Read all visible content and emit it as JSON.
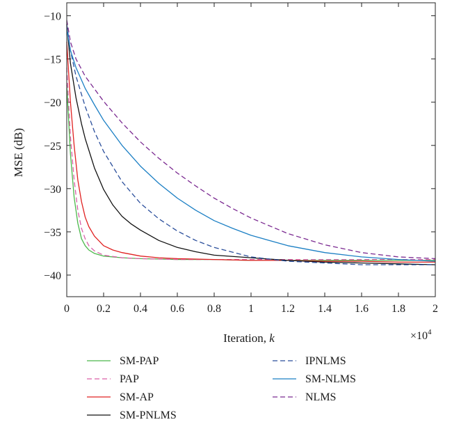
{
  "chart_data": {
    "type": "line",
    "title": "",
    "xlabel_text": "Iteration, ",
    "xlabel_var": "k",
    "ylabel": "MSE (dB)",
    "x_multiplier_text": "×10",
    "x_multiplier_exp": "4",
    "xlim": [
      0,
      2
    ],
    "ylim": [
      -42.5,
      -8.5
    ],
    "xticks": [
      0,
      0.2,
      0.4,
      0.6,
      0.8,
      1,
      1.2,
      1.4,
      1.6,
      1.8,
      2
    ],
    "xtick_labels": [
      "0",
      "0.2",
      "0.4",
      "0.6",
      "0.8",
      "1",
      "1.2",
      "1.4",
      "1.6",
      "1.8",
      "2"
    ],
    "yticks": [
      -10,
      -15,
      -20,
      -25,
      -30,
      -35,
      -40
    ],
    "ytick_labels": [
      "−10",
      "−15",
      "−20",
      "−25",
      "−30",
      "−35",
      "−40"
    ],
    "grid": false,
    "legend_position": "below",
    "series": [
      {
        "name": "SM-PAP",
        "color": "#4bb84b",
        "dash": "solid",
        "x": [
          0,
          0.02,
          0.04,
          0.06,
          0.08,
          0.1,
          0.12,
          0.15,
          0.2,
          0.3,
          0.4,
          0.6,
          0.8,
          1.0,
          1.2,
          1.4,
          1.6,
          1.8,
          2.0
        ],
        "y": [
          -18,
          -26,
          -31,
          -34,
          -35.8,
          -36.6,
          -37.1,
          -37.5,
          -37.8,
          -38.0,
          -38.1,
          -38.2,
          -38.2,
          -38.3,
          -38.3,
          -38.3,
          -38.3,
          -38.3,
          -38.3
        ]
      },
      {
        "name": "PAP",
        "color": "#d95fa8",
        "dash": "dashed",
        "x": [
          0,
          0.02,
          0.04,
          0.06,
          0.08,
          0.1,
          0.12,
          0.15,
          0.2,
          0.3,
          0.4,
          0.6,
          0.8,
          1.0,
          1.2,
          1.4,
          1.6,
          1.8,
          2.0
        ],
        "y": [
          -16,
          -24,
          -29,
          -32.5,
          -34.6,
          -35.8,
          -36.6,
          -37.2,
          -37.7,
          -38.0,
          -38.1,
          -38.2,
          -38.2,
          -38.2,
          -38.2,
          -38.2,
          -38.2,
          -38.2,
          -38.2
        ]
      },
      {
        "name": "SM-AP",
        "color": "#e02020",
        "dash": "solid",
        "x": [
          0,
          0.02,
          0.04,
          0.06,
          0.08,
          0.1,
          0.12,
          0.15,
          0.2,
          0.25,
          0.3,
          0.4,
          0.5,
          0.6,
          0.8,
          1.0,
          1.2,
          1.4,
          1.6,
          1.8,
          2.0
        ],
        "y": [
          -13,
          -20,
          -25,
          -29,
          -31.5,
          -33.3,
          -34.4,
          -35.5,
          -36.6,
          -37.1,
          -37.4,
          -37.8,
          -38.0,
          -38.1,
          -38.2,
          -38.3,
          -38.3,
          -38.4,
          -38.4,
          -38.5,
          -38.5
        ]
      },
      {
        "name": "SM-PNLMS",
        "color": "#111111",
        "dash": "solid",
        "x": [
          0,
          0.02,
          0.05,
          0.08,
          0.1,
          0.15,
          0.2,
          0.25,
          0.3,
          0.35,
          0.4,
          0.5,
          0.6,
          0.7,
          0.8,
          1.0,
          1.2,
          1.4,
          1.6,
          1.8,
          2.0
        ],
        "y": [
          -11,
          -15.5,
          -19.5,
          -22.5,
          -24.2,
          -27.6,
          -30.1,
          -31.9,
          -33.2,
          -34.1,
          -34.8,
          -36.0,
          -36.8,
          -37.3,
          -37.7,
          -38.0,
          -38.3,
          -38.5,
          -38.6,
          -38.7,
          -38.8
        ]
      },
      {
        "name": "IPNLMS",
        "color": "#2a4e9b",
        "dash": "dashed",
        "x": [
          0,
          0.02,
          0.05,
          0.1,
          0.15,
          0.2,
          0.3,
          0.4,
          0.5,
          0.6,
          0.7,
          0.8,
          1.0,
          1.2,
          1.4,
          1.6,
          1.8,
          2.0
        ],
        "y": [
          -11,
          -14,
          -17,
          -20.5,
          -23.4,
          -25.7,
          -29.2,
          -31.7,
          -33.5,
          -34.9,
          -36.0,
          -36.8,
          -37.9,
          -38.4,
          -38.6,
          -38.8,
          -38.8,
          -38.8
        ]
      },
      {
        "name": "SM-NLMS",
        "color": "#1b7fc4",
        "dash": "solid",
        "x": [
          0,
          0.02,
          0.05,
          0.1,
          0.15,
          0.2,
          0.3,
          0.4,
          0.5,
          0.6,
          0.7,
          0.8,
          0.9,
          1.0,
          1.2,
          1.4,
          1.6,
          1.8,
          2.0
        ],
        "y": [
          -11.5,
          -14,
          -16,
          -18.4,
          -20.3,
          -22.1,
          -25.0,
          -27.4,
          -29.4,
          -31.1,
          -32.5,
          -33.7,
          -34.6,
          -35.4,
          -36.6,
          -37.4,
          -37.9,
          -38.2,
          -38.4
        ]
      },
      {
        "name": "NLMS",
        "color": "#7b2a91",
        "dash": "dashed",
        "x": [
          0,
          0.02,
          0.05,
          0.1,
          0.2,
          0.3,
          0.4,
          0.5,
          0.6,
          0.7,
          0.8,
          0.9,
          1.0,
          1.2,
          1.4,
          1.6,
          1.8,
          2.0
        ],
        "y": [
          -10.5,
          -13,
          -15,
          -17,
          -19.9,
          -22.4,
          -24.6,
          -26.5,
          -28.2,
          -29.7,
          -31.1,
          -32.3,
          -33.4,
          -35.2,
          -36.5,
          -37.4,
          -37.9,
          -38.1
        ]
      }
    ]
  }
}
